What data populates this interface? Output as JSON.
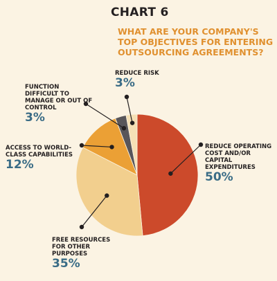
{
  "header": {
    "chart_number": "CHART 6",
    "title": "WHAT ARE YOUR COMPANY'S TOP OBJECTIVES FOR ENTERING OUTSOURCING AGREEMENTS?"
  },
  "colors": {
    "background": "#fbf3e3",
    "title": "#e0902f",
    "value_text": "#3a6c86",
    "connector": "#231f20"
  },
  "chart_data": {
    "type": "pie",
    "title": "WHAT ARE YOUR COMPANY'S TOP OBJECTIVES FOR ENTERING OUTSOURCING AGREEMENTS?",
    "unit": "%",
    "slices": [
      {
        "label": "REDUCE OPERATING COST AND/OR CAPITAL EXPENDITURES",
        "value": 50,
        "value_label": "50%",
        "color": "#cc4a2b"
      },
      {
        "label": "FREE RESOURCES FOR OTHER PURPOSES",
        "value": 35,
        "value_label": "35%",
        "color": "#f2cf8e"
      },
      {
        "label": "ACCESS TO WORLD-CLASS CAPABILITIES",
        "value": 12,
        "value_label": "12%",
        "color": "#eba035"
      },
      {
        "label": "FUNCTION DIFFICULT TO MANAGE OR OUT OF CONTROL",
        "value": 3,
        "value_label": "3%",
        "color": "#58565a"
      },
      {
        "label": "REDUCE RISK",
        "value": 3,
        "value_label": "3%",
        "color": "#f5e0b5"
      }
    ]
  }
}
